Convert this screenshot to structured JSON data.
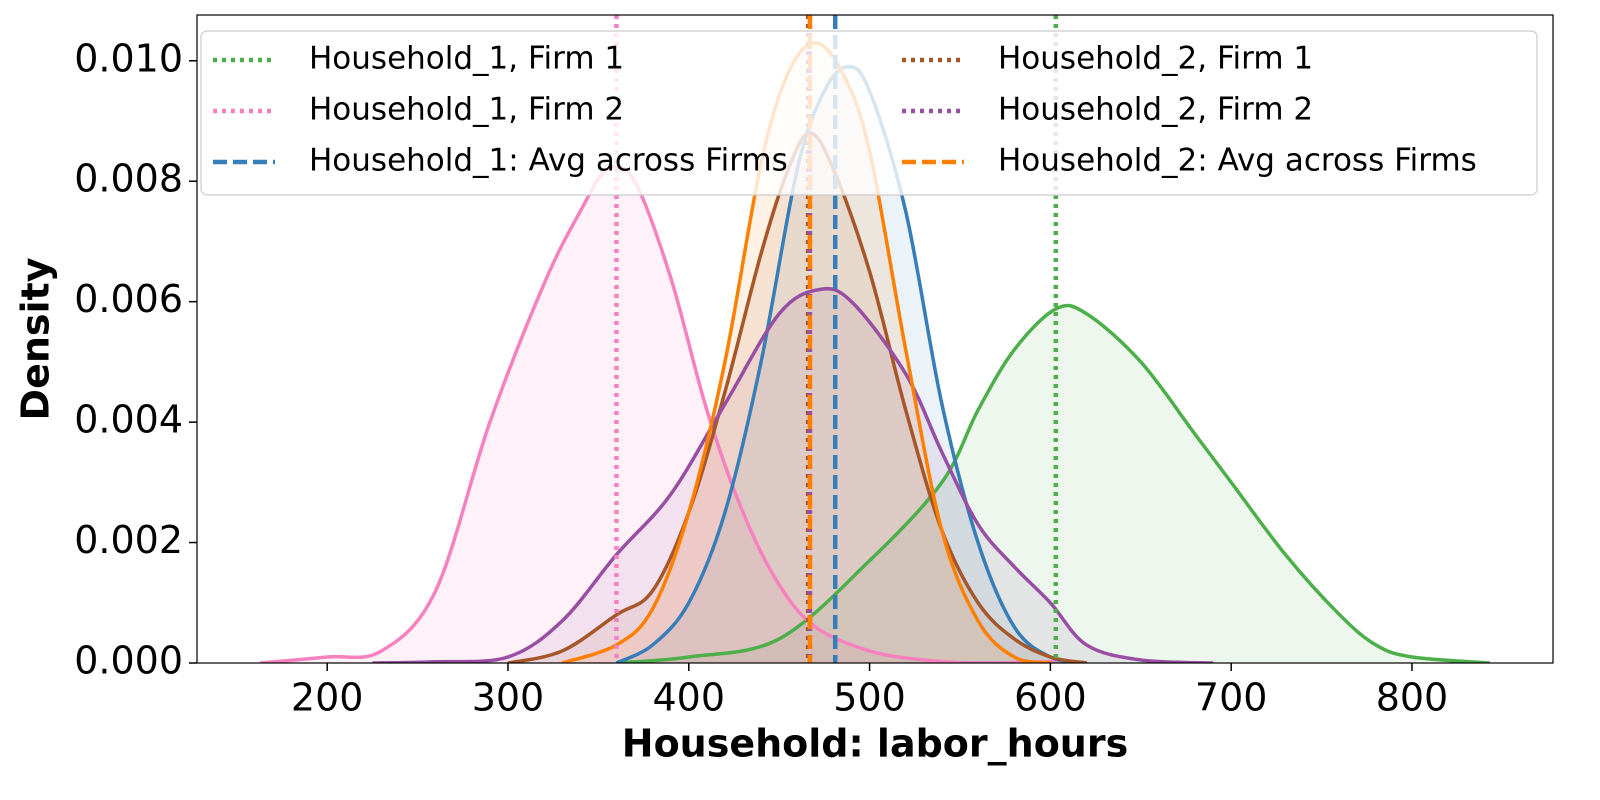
{
  "chart_data": {
    "type": "kde",
    "xlabel": "Household: labor_hours",
    "ylabel": "Density",
    "xlim": [
      128,
      878
    ],
    "ylim": [
      0,
      0.01076
    ],
    "xticks": [
      200,
      300,
      400,
      500,
      600,
      700,
      800
    ],
    "yticks": [
      {
        "value": 0,
        "label": "0.000"
      },
      {
        "value": 0.002,
        "label": "0.002"
      },
      {
        "value": 0.004,
        "label": "0.004"
      },
      {
        "value": 0.006,
        "label": "0.006"
      },
      {
        "value": 0.008,
        "label": "0.008"
      },
      {
        "value": 0.01,
        "label": "0.010"
      }
    ],
    "legend": "upper-left",
    "legend_columns": 2,
    "series": [
      {
        "name": "Household_1, Firm 1",
        "color": "#4daf4a",
        "mean_style": "dotted",
        "mean": 603,
        "x": [
          360,
          400,
          450,
          500,
          540,
          560,
          580,
          603,
          620,
          650,
          680,
          700,
          730,
          760,
          780,
          800,
          843
        ],
        "y": [
          0,
          0.0001,
          0.0004,
          0.0017,
          0.003,
          0.0042,
          0.0052,
          0.00588,
          0.0058,
          0.005,
          0.0038,
          0.003,
          0.0018,
          0.0008,
          0.0003,
          0.0001,
          0
        ]
      },
      {
        "name": "Household_1, Firm 2",
        "color": "#f781bf",
        "mean_style": "dotted",
        "mean": 360,
        "x": [
          163,
          200,
          230,
          260,
          290,
          320,
          340,
          355,
          370,
          390,
          410,
          430,
          450,
          470,
          500,
          530,
          560,
          600,
          620
        ],
        "y": [
          0,
          0.0001,
          0.0002,
          0.0012,
          0.004,
          0.0063,
          0.0075,
          0.0082,
          0.008,
          0.0064,
          0.0042,
          0.0025,
          0.0013,
          0.0006,
          0.0002,
          5e-05,
          0,
          2e-05,
          0
        ]
      },
      {
        "name": "Household_1: Avg across Firms",
        "color": "#377eb8",
        "mean_style": "dashed",
        "mean": 481,
        "x": [
          360,
          380,
          400,
          420,
          440,
          460,
          475,
          488,
          500,
          520,
          540,
          560,
          580,
          600,
          620
        ],
        "y": [
          0,
          0.0003,
          0.001,
          0.0025,
          0.005,
          0.0082,
          0.0095,
          0.0099,
          0.0095,
          0.0075,
          0.0043,
          0.002,
          0.0006,
          0.0001,
          0
        ]
      },
      {
        "name": "Household_2, Firm 1",
        "color": "#a65628",
        "mean_style": "dotted",
        "mean": 466,
        "x": [
          300,
          330,
          360,
          380,
          400,
          420,
          440,
          455,
          467,
          480,
          500,
          520,
          540,
          560,
          580,
          600,
          620
        ],
        "y": [
          0,
          0.0002,
          0.0008,
          0.0012,
          0.0025,
          0.0045,
          0.0068,
          0.0082,
          0.0088,
          0.0082,
          0.0065,
          0.0042,
          0.0022,
          0.001,
          0.0004,
          0.0001,
          0
        ]
      },
      {
        "name": "Household_2, Firm 2",
        "color": "#984ea3",
        "mean_style": "dotted",
        "mean": 467,
        "x": [
          225,
          260,
          300,
          330,
          360,
          390,
          420,
          450,
          472,
          490,
          520,
          540,
          560,
          580,
          600,
          620,
          650,
          690
        ],
        "y": [
          0,
          2e-05,
          0.0001,
          0.0007,
          0.0018,
          0.0028,
          0.0043,
          0.0058,
          0.0062,
          0.006,
          0.0048,
          0.0035,
          0.0023,
          0.0016,
          0.001,
          0.0003,
          5e-05,
          0
        ]
      },
      {
        "name": "Household_2: Avg across Firms",
        "color": "#ff7f00",
        "mean_style": "dashed",
        "mean": 467,
        "x": [
          330,
          360,
          380,
          400,
          420,
          440,
          455,
          470,
          485,
          500,
          520,
          540,
          560,
          580,
          600
        ],
        "y": [
          0,
          0.0003,
          0.0009,
          0.0025,
          0.005,
          0.0083,
          0.0098,
          0.0103,
          0.0098,
          0.0085,
          0.0052,
          0.0022,
          0.0007,
          0.0001,
          0
        ]
      }
    ]
  }
}
